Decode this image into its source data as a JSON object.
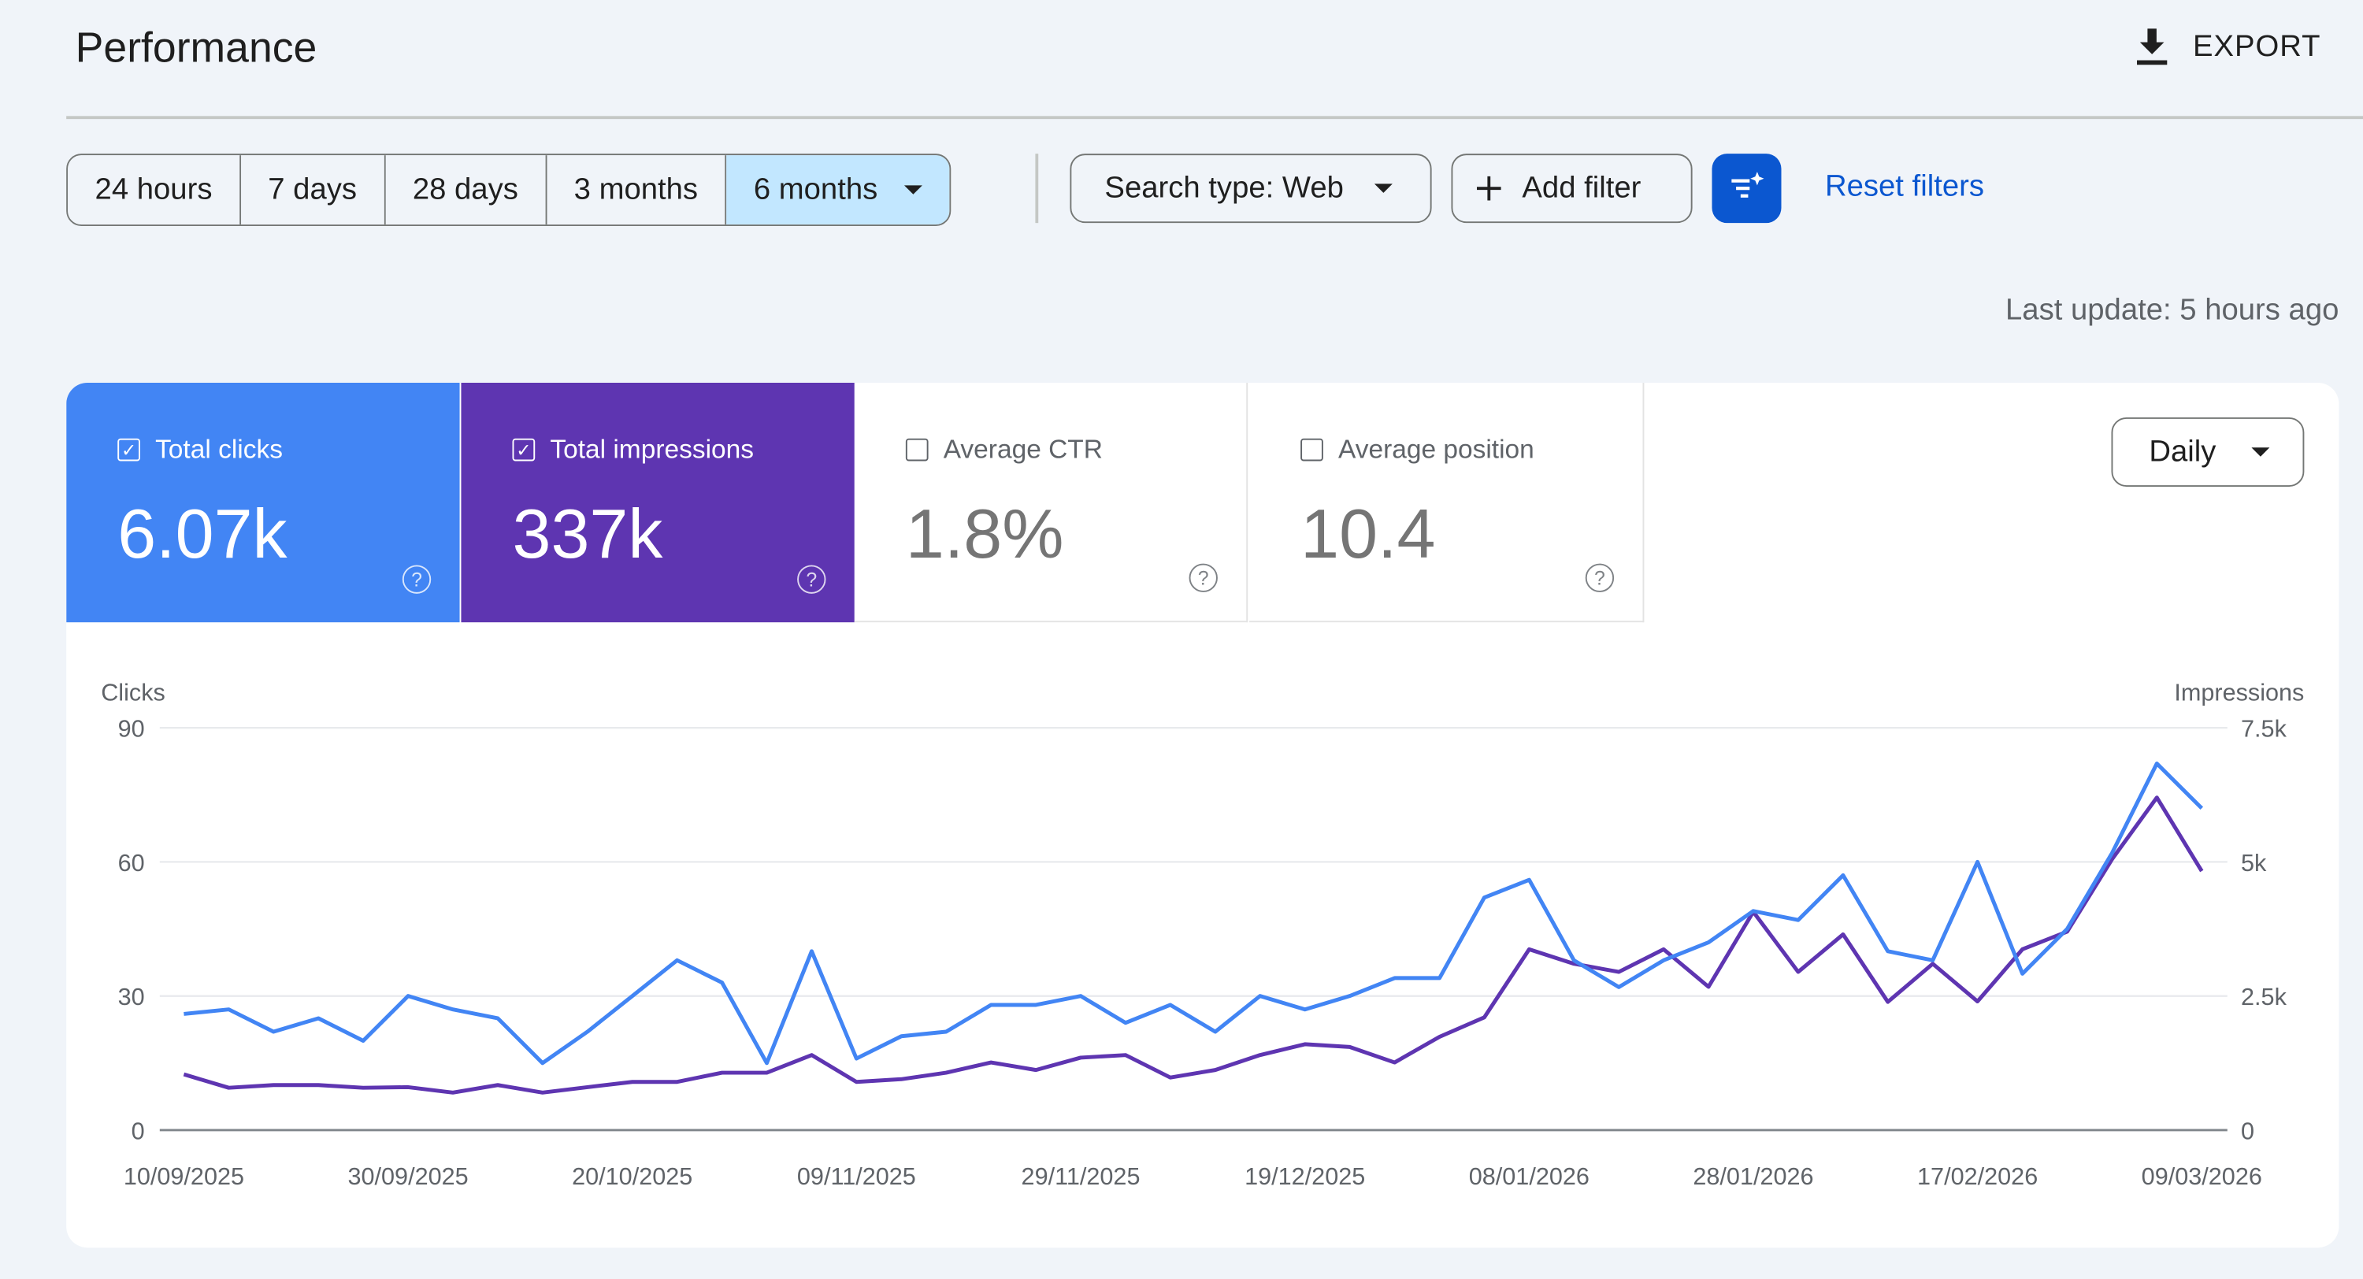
{
  "header": {
    "title": "Performance",
    "export_label": "EXPORT",
    "export_icon": "download-icon"
  },
  "toolbar": {
    "ranges": [
      "24 hours",
      "7 days",
      "28 days",
      "3 months",
      "6 months"
    ],
    "selected_range": "6 months",
    "search_type": "Search type: Web",
    "add_filter": "Add filter",
    "reset_filters": "Reset filters",
    "last_update": "Last update: 5 hours ago"
  },
  "metrics": [
    {
      "label": "Total clicks",
      "value": "6.07k",
      "checked": true,
      "color": "#4285f4"
    },
    {
      "label": "Total impressions",
      "value": "337k",
      "checked": true,
      "color": "#5e35b1"
    },
    {
      "label": "Average CTR",
      "value": "1.8%",
      "checked": false
    },
    {
      "label": "Average position",
      "value": "10.4",
      "checked": false
    }
  ],
  "granularity": "Daily",
  "chart_data": {
    "type": "line",
    "ylabel_left": "Clicks",
    "ylabel_right": "Impressions",
    "ylim_left": [
      0,
      90
    ],
    "yticks_left": [
      "0",
      "30",
      "60",
      "90"
    ],
    "ylim_right": [
      0,
      7500
    ],
    "yticks_right": [
      "0",
      "2.5k",
      "5k",
      "7.5k"
    ],
    "xlim": [
      "10/09/2025",
      "09/03/2026"
    ],
    "xtick_labels": [
      "10/09/2025",
      "30/09/2025",
      "20/10/2025",
      "09/11/2025",
      "29/11/2025",
      "19/12/2025",
      "08/01/2026",
      "28/01/2026",
      "17/02/2026",
      "09/03/2026"
    ],
    "grid": true,
    "x": [
      "10/09/2025",
      "14/09/2025",
      "18/09/2025",
      "22/09/2025",
      "26/09/2025",
      "30/09/2025",
      "04/10/2025",
      "08/10/2025",
      "12/10/2025",
      "16/10/2025",
      "20/10/2025",
      "24/10/2025",
      "28/10/2025",
      "01/11/2025",
      "05/11/2025",
      "09/11/2025",
      "13/11/2025",
      "17/11/2025",
      "21/11/2025",
      "25/11/2025",
      "29/11/2025",
      "03/12/2025",
      "07/12/2025",
      "11/12/2025",
      "15/12/2025",
      "19/12/2025",
      "23/12/2025",
      "27/12/2025",
      "31/12/2025",
      "04/01/2026",
      "08/01/2026",
      "12/01/2026",
      "16/01/2026",
      "20/01/2026",
      "24/01/2026",
      "28/01/2026",
      "01/02/2026",
      "05/02/2026",
      "09/02/2026",
      "13/02/2026",
      "17/02/2026",
      "21/02/2026",
      "25/02/2026",
      "01/03/2026",
      "05/03/2026",
      "09/03/2026"
    ],
    "series": [
      {
        "axis": "left",
        "color": "#4285f4",
        "values": [
          26,
          27,
          22,
          25,
          20,
          30,
          27,
          25,
          15,
          22,
          30,
          38,
          33,
          15,
          40,
          16,
          21,
          22,
          28,
          28,
          30,
          24,
          28,
          22,
          30,
          27,
          30,
          34,
          34,
          52,
          56,
          38,
          32,
          38,
          42,
          49,
          47,
          57,
          40,
          38,
          60,
          35,
          45,
          62,
          82,
          72
        ]
      },
      {
        "axis": "right",
        "color": "#5e35b1",
        "values": [
          1040,
          790,
          840,
          840,
          790,
          800,
          700,
          840,
          700,
          800,
          900,
          900,
          1070,
          1070,
          1400,
          900,
          950,
          1070,
          1260,
          1120,
          1350,
          1400,
          980,
          1120,
          1400,
          1600,
          1550,
          1260,
          1740,
          2100,
          3370,
          3100,
          2950,
          3370,
          2670,
          4070,
          2950,
          3650,
          2390,
          3100,
          2400,
          3370,
          3700,
          5050,
          6200,
          4830
        ]
      }
    ]
  }
}
